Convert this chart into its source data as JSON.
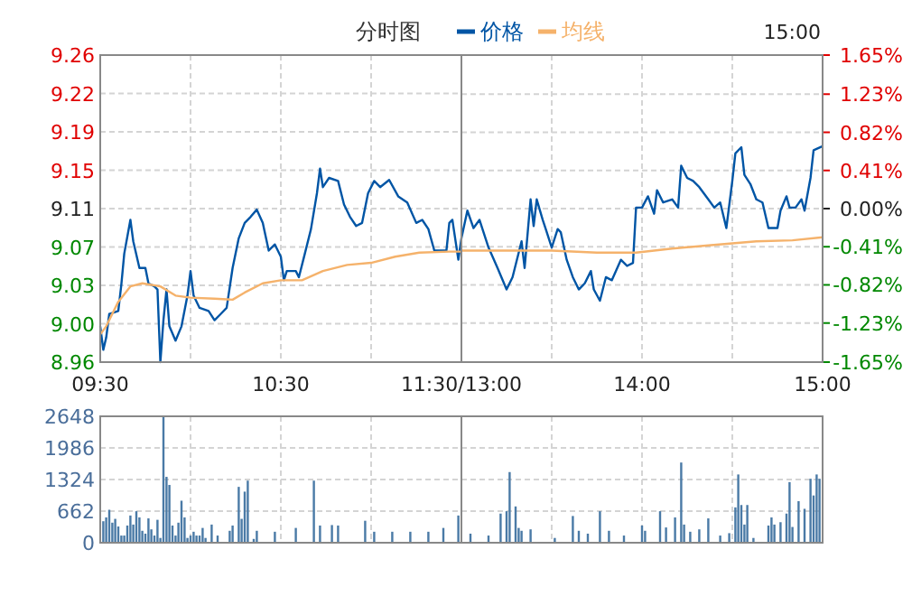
{
  "chart_data": [
    {
      "type": "line",
      "title": "分时图",
      "legend": "top",
      "grid": true,
      "xlim": [
        9.5,
        11.5
      ],
      "xticks": [
        {
          "value": 9.5,
          "label": "09:30"
        },
        {
          "value": 10,
          "label": null
        },
        {
          "value": 10.5,
          "label": "10:30"
        },
        {
          "value": 11,
          "label": null
        },
        {
          "value": 11.5,
          "label": "11:30/13:00"
        }
      ],
      "ylim": [
        8.96,
        9.26
      ],
      "yticks": [
        8.96,
        {
          "value": 8.9975,
          "label": "9.00"
        },
        {
          "value": 9.035,
          "label": "9.03"
        },
        {
          "value": 9.0725,
          "label": "9.07"
        },
        9.11,
        {
          "value": 9.1475,
          "label": "9.15"
        },
        {
          "value": 9.185,
          "label": "9.19"
        },
        {
          "value": 9.2225,
          "label": "9.22"
        },
        9.26
      ],
      "series": [
        {
          "name": "价格",
          "color": "#0055a5",
          "x": [
            9.5,
            9.517,
            9.533,
            9.55,
            9.567,
            9.6,
            9.617,
            9.633,
            9.667,
            9.683,
            9.717,
            9.75,
            9.767,
            9.8,
            9.817,
            9.833,
            9.85,
            9.867,
            9.883,
            9.917,
            9.95,
            9.983,
            10,
            10.017,
            10.05,
            10.1,
            10.133,
            10.167,
            10.2,
            10.233,
            10.267,
            10.3,
            10.333,
            10.367,
            10.4,
            10.433,
            10.467,
            10.5,
            10.517,
            10.533,
            10.583,
            10.6,
            10.633,
            10.667,
            10.7,
            10.717,
            10.733,
            10.767,
            10.817,
            10.85,
            10.883,
            10.917,
            10.95,
            10.983,
            11.017,
            11.05,
            11.1,
            11.15,
            11.2,
            11.25,
            11.283,
            11.317,
            11.35,
            11.417,
            11.433,
            11.45,
            11.483,
            11.5
          ],
          "values": [
            8.995,
            8.972,
            8.984,
            9.007,
            9.008,
            9.01,
            9.036,
            9.066,
            9.099,
            9.078,
            9.052,
            9.052,
            9.037,
            9.034,
            9.031,
            8.96,
            9.001,
            9.031,
            8.995,
            8.981,
            8.995,
            9.025,
            9.049,
            9.025,
            9.013,
            9.01,
            9.001,
            9.007,
            9.013,
            9.052,
            9.081,
            9.096,
            9.102,
            9.109,
            9.096,
            9.069,
            9.075,
            9.063,
            9.04,
            9.049,
            9.049,
            9.043,
            9.066,
            9.09,
            9.125,
            9.149,
            9.131,
            9.14,
            9.137,
            9.114,
            9.102,
            9.093,
            9.096,
            9.125,
            9.137,
            9.131,
            9.138,
            9.122,
            9.116,
            9.096,
            9.099,
            9.09,
            9.069,
            9.069,
            9.096,
            9.099,
            9.06,
            9.081
          ]
        },
        {
          "name": "均线",
          "color": "#f5b26b",
          "x": [
            9.5,
            9.533,
            9.6,
            9.667,
            9.733,
            9.833,
            9.917,
            10,
            10.133,
            10.233,
            10.3,
            10.4,
            10.5,
            10.617,
            10.733,
            10.867,
            11,
            11.133,
            11.267,
            11.433,
            11.5
          ],
          "values": [
            8.987,
            8.995,
            9.019,
            9.034,
            9.037,
            9.034,
            9.025,
            9.023,
            9.022,
            9.021,
            9.028,
            9.037,
            9.04,
            9.04,
            9.049,
            9.055,
            9.057,
            9.063,
            9.067,
            9.068,
            9.068
          ]
        }
      ]
    },
    {
      "type": "line",
      "annotations": [
        "15:00"
      ],
      "grid": true,
      "xlim": [
        13,
        15
      ],
      "xticks": [
        {
          "value": 13,
          "label": null
        },
        {
          "value": 13.5,
          "label": null
        },
        {
          "value": 14,
          "label": "14:00"
        },
        {
          "value": 14.5,
          "label": null
        },
        {
          "value": 15,
          "label": "15:00"
        }
      ],
      "ylim": [
        8.96,
        9.26
      ],
      "y2lim": [
        -1.65,
        1.65
      ],
      "y2ticks": [
        {
          "value": -1.65,
          "label": "-1.65%"
        },
        {
          "value": -1.23,
          "label": "-1.23%"
        },
        {
          "value": -0.82,
          "label": "-0.82%"
        },
        {
          "value": -0.41,
          "label": "-0.41%"
        },
        {
          "value": 0,
          "label": "0.00%"
        },
        {
          "value": 0.41,
          "label": "0.41%"
        },
        {
          "value": 0.82,
          "label": "0.82%"
        },
        {
          "value": 1.23,
          "label": "1.23%"
        },
        {
          "value": 1.65,
          "label": "1.65%"
        }
      ],
      "series": [
        {
          "color": "#0055a5",
          "x": [
            13,
            13.033,
            13.067,
            13.1,
            13.15,
            13.2,
            13.25,
            13.283,
            13.333,
            13.35,
            13.383,
            13.4,
            13.417,
            13.45,
            13.467,
            13.5,
            13.533,
            13.55,
            13.583,
            13.617,
            13.65,
            13.683,
            13.717,
            13.733,
            13.767,
            13.8,
            13.833,
            13.883,
            13.917,
            13.95,
            13.967,
            14,
            14.033,
            14.067,
            14.083,
            14.117,
            14.167,
            14.2,
            14.217,
            14.25,
            14.283,
            14.317,
            14.367,
            14.4,
            14.433,
            14.467,
            14.5,
            14.517,
            14.55,
            14.567,
            14.6,
            14.633,
            14.667,
            14.7,
            14.75,
            14.767,
            14.8,
            14.817,
            14.85,
            14.883,
            14.9,
            14.933,
            14.95,
            15
          ],
          "values": [
            9.081,
            9.108,
            9.091,
            9.099,
            9.072,
            9.052,
            9.031,
            9.043,
            9.078,
            9.052,
            9.119,
            9.093,
            9.119,
            9.099,
            9.09,
            9.072,
            9.09,
            9.087,
            9.06,
            9.043,
            9.031,
            9.037,
            9.049,
            9.031,
            9.02,
            9.043,
            9.04,
            9.06,
            9.054,
            9.057,
            9.111,
            9.111,
            9.122,
            9.105,
            9.128,
            9.116,
            9.119,
            9.111,
            9.152,
            9.14,
            9.137,
            9.131,
            9.119,
            9.111,
            9.116,
            9.091,
            9.137,
            9.164,
            9.17,
            9.143,
            9.134,
            9.119,
            9.116,
            9.091,
            9.091,
            9.108,
            9.122,
            9.111,
            9.111,
            9.119,
            9.108,
            9.14,
            9.167,
            9.171
          ]
        },
        {
          "color": "#f5b26b",
          "x": [
            13,
            13.167,
            13.5,
            13.75,
            13.967,
            14.167,
            14.367,
            14.633,
            14.833,
            15
          ],
          "values": [
            9.069,
            9.069,
            9.069,
            9.067,
            9.067,
            9.071,
            9.074,
            9.078,
            9.079,
            9.082
          ]
        }
      ]
    },
    {
      "type": "bar",
      "tick_labels": "y",
      "grid": true,
      "xlim": [
        9.5,
        11.5
      ],
      "ylim": [
        0,
        2648
      ],
      "yticks": [
        0,
        662,
        1324,
        1986,
        2648
      ],
      "x": [
        9.517,
        9.533,
        9.55,
        9.567,
        9.583,
        9.6,
        9.617,
        9.633,
        9.65,
        9.667,
        9.683,
        9.7,
        9.717,
        9.733,
        9.75,
        9.767,
        9.783,
        9.8,
        9.817,
        9.833,
        9.85,
        9.867,
        9.883,
        9.9,
        9.917,
        9.933,
        9.95,
        9.967,
        9.983,
        10,
        10.017,
        10.033,
        10.05,
        10.067,
        10.083,
        10.117,
        10.15,
        10.217,
        10.233,
        10.267,
        10.283,
        10.3,
        10.317,
        10.35,
        10.367,
        10.467,
        10.583,
        10.683,
        10.717,
        10.783,
        10.817,
        10.967,
        11.017,
        11.117,
        11.217,
        11.317,
        11.4,
        11.483
      ],
      "series": [
        {
          "color": "#4a7aa6",
          "values": [
            450,
            530,
            690,
            420,
            500,
            340,
            150,
            150,
            360,
            570,
            380,
            660,
            530,
            250,
            190,
            510,
            280,
            150,
            480,
            100,
            2640,
            1380,
            1210,
            360,
            150,
            420,
            880,
            530,
            100,
            150,
            230,
            150,
            150,
            310,
            100,
            380,
            150,
            250,
            360,
            1170,
            500,
            1070,
            1300,
            80,
            250,
            230,
            310,
            1300,
            360,
            370,
            360,
            460,
            230,
            230,
            230,
            230,
            310,
            570
          ]
        }
      ]
    },
    {
      "type": "bar",
      "tick_labels": false,
      "grid": true,
      "xlim": [
        13,
        15
      ],
      "ylim": [
        0,
        2648
      ],
      "yticks": [
        0,
        662,
        1324,
        1986,
        2648
      ],
      "x": [
        13.05,
        13.15,
        13.217,
        13.25,
        13.267,
        13.3,
        13.317,
        13.333,
        13.383,
        13.517,
        13.617,
        13.65,
        13.7,
        13.767,
        13.817,
        13.9,
        14,
        14.017,
        14.1,
        14.133,
        14.183,
        14.217,
        14.233,
        14.267,
        14.317,
        14.367,
        14.433,
        14.483,
        14.517,
        14.533,
        14.55,
        14.567,
        14.583,
        14.617,
        14.7,
        14.717,
        14.733,
        14.767,
        14.8,
        14.817,
        14.833,
        14.867,
        14.9,
        14.933,
        14.95,
        14.967,
        14.983
      ],
      "series": [
        {
          "color": "#4a7aa6",
          "values": [
            190,
            150,
            610,
            660,
            1480,
            760,
            310,
            250,
            280,
            100,
            560,
            250,
            190,
            660,
            250,
            150,
            360,
            250,
            660,
            320,
            530,
            1680,
            380,
            230,
            280,
            510,
            150,
            200,
            740,
            1430,
            790,
            380,
            790,
            100,
            360,
            530,
            380,
            430,
            610,
            1270,
            330,
            870,
            710,
            1340,
            990,
            1430,
            1340
          ]
        }
      ]
    }
  ]
}
